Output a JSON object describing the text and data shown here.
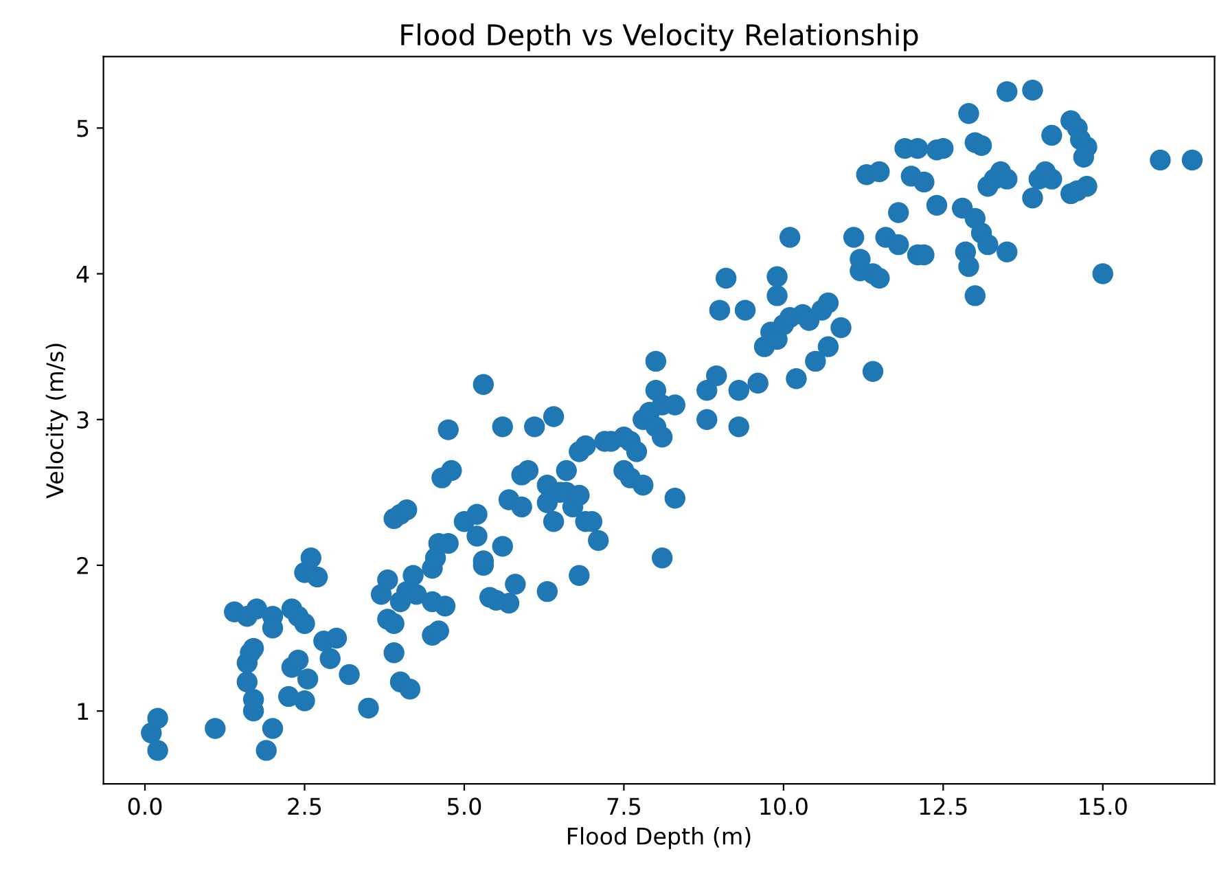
{
  "chart_data": {
    "type": "scatter",
    "title": "Flood Depth vs Velocity Relationship",
    "xlabel": "Flood Depth (m)",
    "ylabel": "Velocity (m/s)",
    "xlim": [
      -0.65,
      16.75
    ],
    "ylim": [
      0.5,
      5.49
    ],
    "xticks": [
      {
        "value": 0,
        "label": "0.0"
      },
      2.5,
      {
        "value": 5,
        "label": "5.0"
      },
      7.5,
      {
        "value": 10,
        "label": "10.0"
      },
      12.5,
      {
        "value": 15,
        "label": "15.0"
      }
    ],
    "yticks": [
      1,
      2,
      3,
      4,
      5
    ],
    "grid": false,
    "marker": "circle",
    "series": [
      {
        "color": "#1f77b4",
        "x": [
          0.1,
          0.2,
          0.2,
          1.1,
          1.9,
          2.0,
          1.7,
          1.7,
          1.6,
          1.6,
          1.65,
          1.7,
          1.4,
          1.6,
          1.75,
          2.0,
          2.0,
          2.3,
          2.4,
          2.5,
          2.5,
          2.6,
          2.7,
          2.3,
          2.4,
          2.55,
          2.5,
          2.25,
          2.8,
          3.0,
          2.9,
          3.2,
          3.5,
          3.7,
          3.8,
          3.8,
          3.9,
          4.0,
          3.9,
          4.15,
          4.0,
          4.1,
          4.2,
          4.25,
          3.9,
          4.0,
          4.1,
          4.5,
          4.6,
          4.7,
          4.5,
          4.5,
          4.55,
          4.6,
          4.75,
          4.65,
          4.8,
          4.75,
          5.0,
          5.2,
          5.2,
          5.3,
          5.3,
          5.3,
          5.4,
          5.5,
          5.7,
          5.8,
          5.6,
          5.6,
          5.7,
          5.9,
          5.9,
          6.0,
          6.1,
          6.3,
          6.3,
          6.3,
          6.4,
          6.4,
          6.5,
          6.6,
          6.7,
          6.6,
          6.8,
          6.9,
          6.8,
          6.9,
          7.0,
          6.8,
          7.1,
          7.2,
          7.3,
          7.5,
          7.6,
          7.5,
          7.6,
          7.7,
          7.8,
          7.8,
          7.9,
          8.0,
          8.0,
          8.1,
          8.0,
          8.1,
          8.3,
          8.1,
          8.3,
          8.8,
          8.8,
          8.95,
          9.0,
          9.1,
          9.3,
          9.3,
          9.4,
          9.6,
          9.7,
          9.8,
          9.9,
          9.9,
          9.9,
          10.0,
          10.1,
          10.1,
          10.2,
          10.3,
          10.4,
          10.5,
          10.6,
          10.7,
          10.7,
          10.9,
          11.1,
          11.2,
          11.2,
          11.3,
          11.4,
          11.4,
          11.5,
          11.5,
          11.6,
          11.8,
          11.8,
          11.9,
          12.1,
          12.0,
          12.2,
          12.1,
          12.2,
          12.4,
          12.5,
          12.4,
          12.8,
          12.85,
          12.9,
          12.9,
          13.0,
          13.0,
          13.1,
          13.2,
          13.0,
          13.2,
          13.3,
          13.4,
          13.5,
          13.5,
          13.1,
          13.5,
          13.9,
          13.9,
          14.0,
          14.2,
          14.1,
          14.2,
          14.5,
          14.6,
          14.65,
          14.75,
          14.7,
          14.5,
          14.6,
          14.75,
          15.0,
          15.9,
          16.4
        ],
        "values": [
          0.85,
          0.95,
          0.73,
          0.88,
          0.73,
          0.88,
          1.0,
          1.08,
          1.2,
          1.33,
          1.4,
          1.43,
          1.68,
          1.65,
          1.7,
          1.65,
          1.57,
          1.7,
          1.65,
          1.6,
          1.95,
          2.05,
          1.92,
          1.3,
          1.35,
          1.22,
          1.07,
          1.1,
          1.48,
          1.5,
          1.36,
          1.25,
          1.02,
          1.8,
          1.9,
          1.63,
          1.6,
          1.2,
          1.4,
          1.15,
          1.75,
          1.82,
          1.93,
          1.8,
          2.32,
          2.35,
          2.38,
          1.52,
          1.55,
          1.72,
          1.75,
          1.98,
          2.05,
          2.15,
          2.15,
          2.6,
          2.65,
          2.93,
          2.3,
          2.35,
          2.2,
          2.0,
          2.03,
          3.24,
          1.78,
          1.76,
          1.74,
          1.87,
          2.13,
          2.95,
          2.45,
          2.4,
          2.62,
          2.65,
          2.95,
          1.82,
          2.55,
          2.43,
          2.3,
          3.02,
          2.5,
          2.5,
          2.4,
          2.65,
          2.78,
          2.82,
          2.48,
          2.3,
          2.3,
          1.93,
          2.17,
          2.85,
          2.85,
          2.88,
          2.85,
          2.65,
          2.6,
          2.78,
          2.55,
          3.0,
          3.05,
          3.2,
          3.4,
          2.05,
          2.95,
          3.1,
          3.1,
          2.88,
          2.46,
          3.0,
          3.2,
          3.3,
          3.75,
          3.97,
          3.2,
          2.95,
          3.75,
          3.25,
          3.5,
          3.6,
          3.55,
          3.85,
          3.98,
          3.65,
          3.7,
          4.25,
          3.28,
          3.72,
          3.68,
          3.4,
          3.75,
          3.8,
          3.5,
          3.63,
          4.25,
          4.02,
          4.1,
          4.68,
          4.0,
          3.33,
          3.97,
          4.7,
          4.25,
          4.2,
          4.42,
          4.86,
          4.86,
          4.67,
          4.63,
          4.13,
          4.13,
          4.85,
          4.86,
          4.47,
          4.45,
          4.15,
          4.05,
          5.1,
          4.9,
          4.38,
          4.28,
          4.2,
          3.85,
          4.6,
          4.65,
          4.7,
          4.65,
          4.15,
          4.88,
          5.25,
          5.26,
          4.52,
          4.65,
          4.65,
          4.7,
          4.95,
          5.05,
          5.0,
          4.92,
          4.87,
          4.8,
          4.55,
          4.57,
          4.6,
          4.0,
          4.78,
          4.78
        ]
      }
    ]
  }
}
